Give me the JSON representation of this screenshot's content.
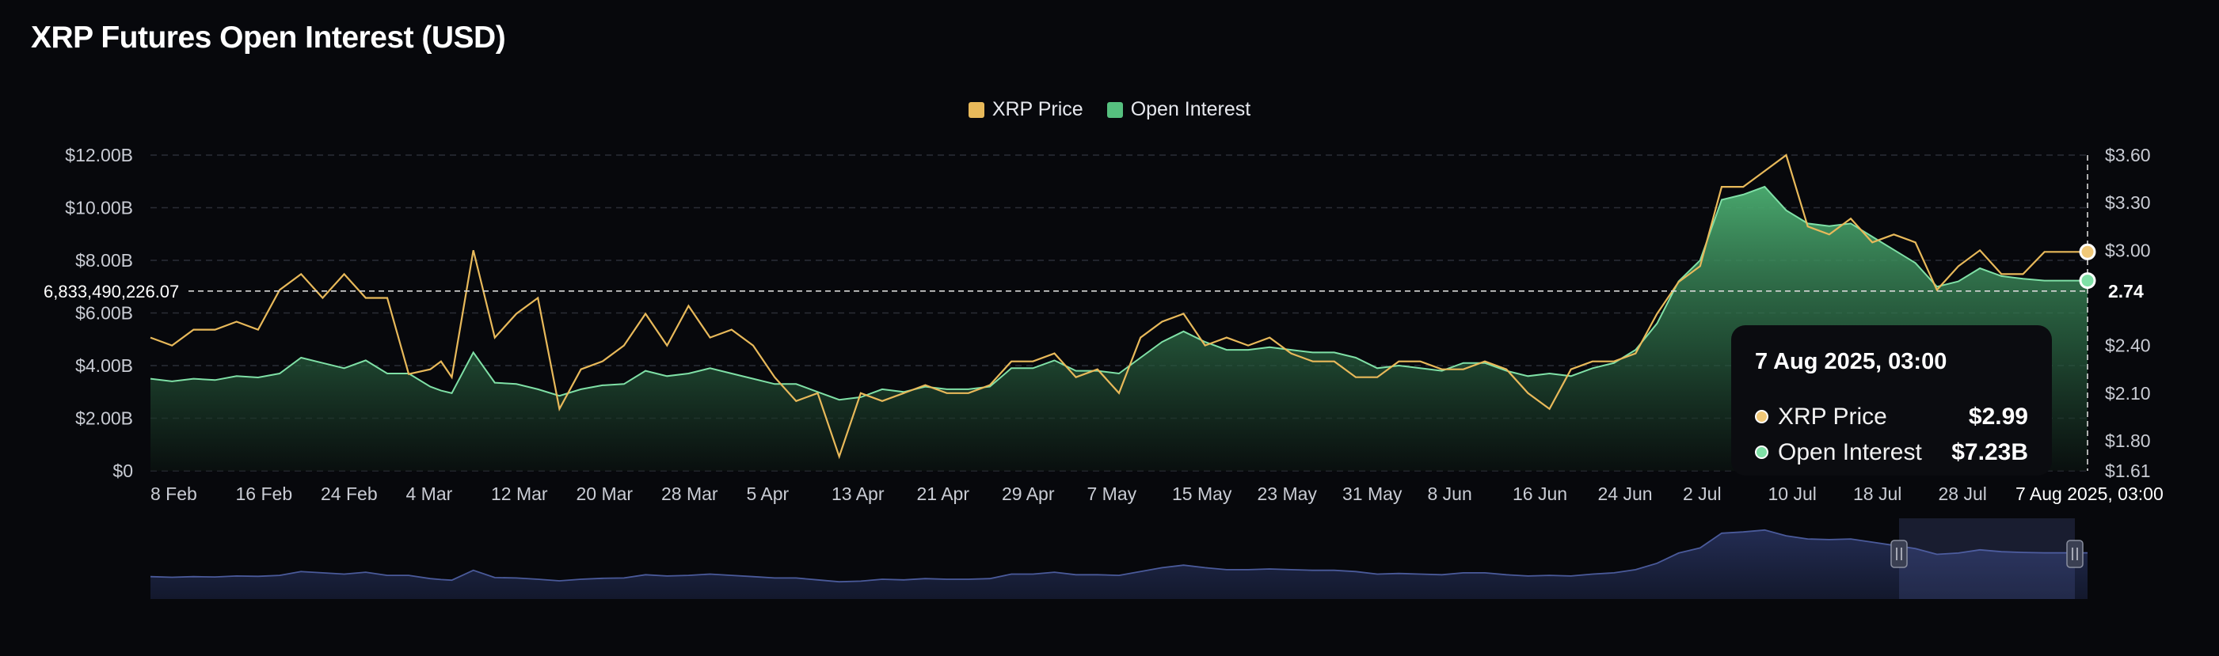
{
  "title": "XRP Futures Open Interest (USD)",
  "colors": {
    "background": "#07080c",
    "price": "#e8b95a",
    "open_interest": "#4caf72",
    "navigator": "#4a5a9a"
  },
  "legend": [
    {
      "label": "XRP Price",
      "color": "#e8b95a"
    },
    {
      "label": "Open Interest",
      "color": "#56c07f"
    }
  ],
  "crosshair": {
    "left_value_label": "6,833,490,226.07",
    "right_value_label": "2.74",
    "date_label": "7 Aug 2025, 03:00"
  },
  "tooltip": {
    "title": "7 Aug 2025, 03:00",
    "rows": [
      {
        "label": "XRP Price",
        "value": "$2.99",
        "color": "#f0c878"
      },
      {
        "label": "Open Interest",
        "value": "$7.23B",
        "color": "#7fe0a6"
      }
    ]
  },
  "chart_data": {
    "type": "area",
    "x_tick_labels": [
      "8 Feb",
      "16 Feb",
      "24 Feb",
      "4 Mar",
      "12 Mar",
      "20 Mar",
      "28 Mar",
      "5 Apr",
      "13 Apr",
      "21 Apr",
      "29 Apr",
      "7 May",
      "15 May",
      "23 May",
      "31 May",
      "8 Jun",
      "16 Jun",
      "24 Jun",
      "2 Jul",
      "10 Jul",
      "18 Jul",
      "28 Jul"
    ],
    "y_left": {
      "ticks": [
        "$0",
        "$2.00B",
        "$4.00B",
        "$6.00B",
        "$8.00B",
        "$10.00B",
        "$12.00B"
      ],
      "range": [
        0,
        12
      ],
      "unit": "B USD"
    },
    "y_right": {
      "ticks": [
        "$1.61",
        "$1.80",
        "$2.10",
        "$2.40",
        "$2.74",
        "$3.00",
        "$3.30",
        "$3.60"
      ],
      "range": [
        1.61,
        3.6
      ]
    },
    "grid": true,
    "legend_position": "top-center",
    "x_day_offsets": [
      0,
      2,
      4,
      6,
      8,
      10,
      12,
      14,
      16,
      18,
      20,
      22,
      24,
      26,
      27,
      28,
      30,
      32,
      34,
      36,
      38,
      40,
      42,
      44,
      46,
      48,
      50,
      52,
      54,
      56,
      58,
      60,
      62,
      64,
      66,
      68,
      70,
      72,
      74,
      76,
      78,
      80,
      82,
      84,
      86,
      88,
      90,
      92,
      94,
      96,
      98,
      100,
      102,
      104,
      106,
      108,
      110,
      112,
      114,
      116,
      118,
      120,
      122,
      124,
      126,
      128,
      130,
      132,
      134,
      136,
      138,
      140,
      142,
      144,
      146,
      148,
      150,
      152,
      154,
      156,
      158,
      160,
      162,
      164,
      166,
      168,
      170,
      172,
      174,
      176,
      178,
      180
    ],
    "series": [
      {
        "name": "Open Interest",
        "axis": "left",
        "values": [
          3.5,
          3.4,
          3.5,
          3.45,
          3.6,
          3.55,
          3.7,
          4.3,
          4.1,
          3.9,
          4.2,
          3.7,
          3.7,
          3.2,
          3.05,
          2.95,
          4.5,
          3.35,
          3.3,
          3.1,
          2.85,
          3.1,
          3.25,
          3.3,
          3.8,
          3.6,
          3.7,
          3.9,
          3.7,
          3.5,
          3.3,
          3.3,
          3.0,
          2.7,
          2.8,
          3.1,
          3.0,
          3.2,
          3.1,
          3.1,
          3.2,
          3.9,
          3.9,
          4.2,
          3.8,
          3.8,
          3.7,
          4.3,
          4.9,
          5.3,
          4.9,
          4.6,
          4.6,
          4.7,
          4.6,
          4.5,
          4.5,
          4.3,
          3.9,
          4.0,
          3.9,
          3.8,
          4.1,
          4.1,
          3.8,
          3.6,
          3.7,
          3.6,
          3.9,
          4.1,
          4.6,
          5.6,
          7.2,
          8.0,
          10.3,
          10.5,
          10.8,
          9.9,
          9.4,
          9.3,
          9.4,
          8.9,
          8.4,
          7.9,
          7.0,
          7.2,
          7.7,
          7.4,
          7.3,
          7.23,
          7.23,
          7.23
        ]
      },
      {
        "name": "XRP Price",
        "axis": "right",
        "values": [
          2.45,
          2.4,
          2.5,
          2.5,
          2.55,
          2.5,
          2.75,
          2.85,
          2.7,
          2.85,
          2.7,
          2.7,
          2.22,
          2.25,
          2.3,
          2.2,
          3.0,
          2.45,
          2.6,
          2.7,
          2.0,
          2.25,
          2.3,
          2.4,
          2.6,
          2.4,
          2.65,
          2.45,
          2.5,
          2.4,
          2.2,
          2.05,
          2.1,
          1.7,
          2.1,
          2.05,
          2.1,
          2.15,
          2.1,
          2.1,
          2.15,
          2.3,
          2.3,
          2.35,
          2.2,
          2.25,
          2.1,
          2.45,
          2.55,
          2.6,
          2.4,
          2.45,
          2.4,
          2.45,
          2.35,
          2.3,
          2.3,
          2.2,
          2.2,
          2.3,
          2.3,
          2.25,
          2.25,
          2.3,
          2.25,
          2.1,
          2.0,
          2.25,
          2.3,
          2.3,
          2.35,
          2.6,
          2.8,
          2.9,
          3.4,
          3.4,
          3.5,
          3.6,
          3.15,
          3.1,
          3.2,
          3.05,
          3.1,
          3.05,
          2.75,
          2.9,
          3.0,
          2.85,
          2.85,
          2.99,
          2.99,
          2.99
        ]
      }
    ],
    "selected_point": {
      "x": "7 Aug 2025, 03:00",
      "XRP Price": 2.99,
      "Open Interest": 7.23
    }
  }
}
